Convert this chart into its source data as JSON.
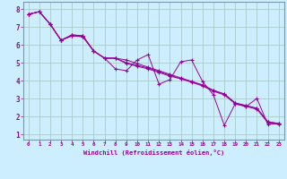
{
  "xlabel": "Windchill (Refroidissement éolien,°C)",
  "bg_color": "#cceeff",
  "grid_color": "#aacccc",
  "line_color": "#990099",
  "xlim": [
    -0.5,
    23.5
  ],
  "ylim": [
    0.7,
    8.4
  ],
  "xticks": [
    0,
    1,
    2,
    3,
    4,
    5,
    6,
    7,
    8,
    9,
    10,
    11,
    12,
    13,
    14,
    15,
    16,
    17,
    18,
    19,
    20,
    21,
    22,
    23
  ],
  "yticks": [
    1,
    2,
    3,
    4,
    5,
    6,
    7,
    8
  ],
  "lines": [
    [
      7.7,
      7.85,
      7.15,
      6.25,
      6.55,
      6.5,
      5.65,
      5.25,
      4.65,
      4.55,
      5.15,
      5.45,
      3.8,
      4.05,
      5.05,
      5.15,
      3.95,
      3.2,
      1.5,
      2.7,
      2.55,
      3.0,
      1.55,
      1.6
    ],
    [
      7.7,
      7.85,
      7.15,
      6.25,
      6.55,
      6.5,
      5.65,
      5.25,
      5.25,
      4.95,
      4.8,
      4.65,
      4.45,
      4.25,
      4.1,
      3.95,
      3.75,
      3.45,
      3.25,
      2.75,
      2.6,
      2.45,
      1.7,
      1.6
    ],
    [
      7.7,
      7.85,
      7.15,
      6.25,
      6.5,
      6.45,
      5.65,
      5.25,
      5.25,
      5.15,
      4.95,
      4.75,
      4.55,
      4.35,
      4.15,
      3.95,
      3.75,
      3.45,
      3.25,
      2.75,
      2.6,
      2.45,
      1.7,
      1.6
    ],
    [
      7.7,
      7.85,
      7.15,
      6.25,
      6.5,
      6.45,
      5.65,
      5.25,
      5.25,
      5.0,
      4.85,
      4.7,
      4.5,
      4.3,
      4.1,
      3.9,
      3.7,
      3.4,
      3.2,
      2.7,
      2.55,
      2.4,
      1.65,
      1.55
    ]
  ]
}
